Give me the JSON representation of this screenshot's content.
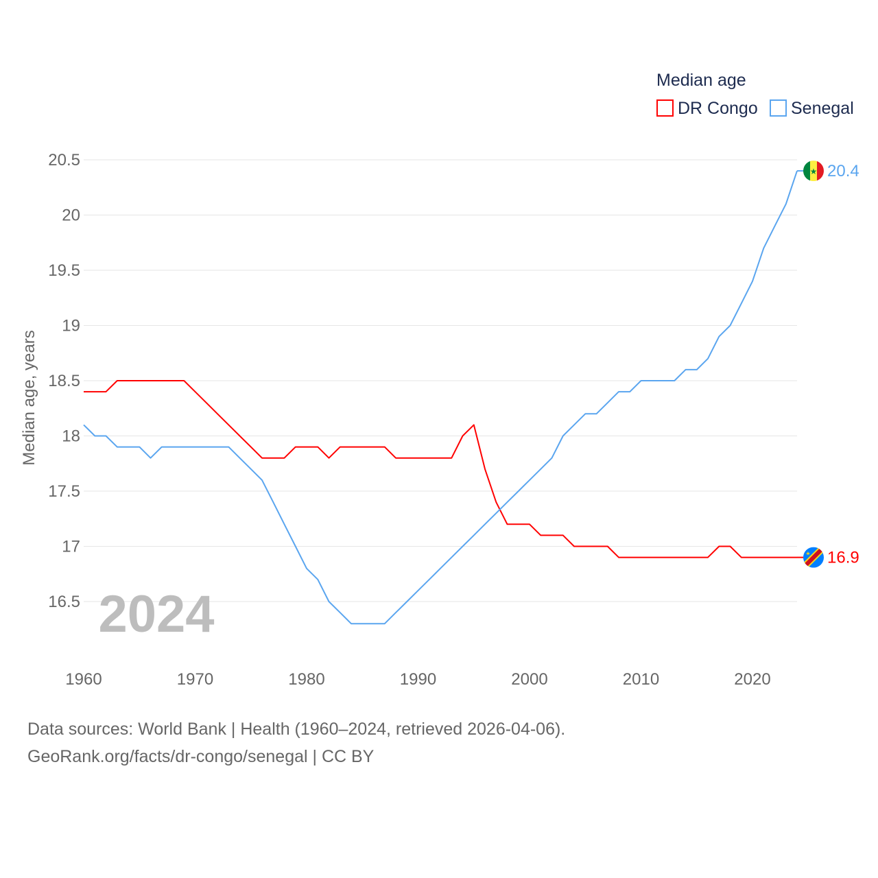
{
  "chart_data": {
    "type": "line",
    "title": "",
    "legend_title": "Median age",
    "legend_placement": "top-right",
    "ylabel": "Median age, years",
    "xlabel": "",
    "ylim": [
      16.0,
      20.5
    ],
    "xlim": [
      1960,
      2024
    ],
    "y_ticks": [
      16.5,
      17,
      17.5,
      18,
      18.5,
      19,
      19.5,
      20,
      20.5
    ],
    "y_tick_labels": [
      "16.5",
      "17",
      "17.5",
      "18",
      "18.5",
      "19",
      "19.5",
      "20",
      "20.5"
    ],
    "x_ticks": [
      1960,
      1970,
      1980,
      1990,
      2000,
      2010,
      2020
    ],
    "x_tick_labels": [
      "1960",
      "1970",
      "1980",
      "1990",
      "2000",
      "2010",
      "2020"
    ],
    "grid": true,
    "year_watermark": "2024",
    "x": [
      1960,
      1961,
      1962,
      1963,
      1964,
      1965,
      1966,
      1967,
      1968,
      1969,
      1970,
      1971,
      1972,
      1973,
      1974,
      1975,
      1976,
      1977,
      1978,
      1979,
      1980,
      1981,
      1982,
      1983,
      1984,
      1985,
      1986,
      1987,
      1988,
      1989,
      1990,
      1991,
      1992,
      1993,
      1994,
      1995,
      1996,
      1997,
      1998,
      1999,
      2000,
      2001,
      2002,
      2003,
      2004,
      2005,
      2006,
      2007,
      2008,
      2009,
      2010,
      2011,
      2012,
      2013,
      2014,
      2015,
      2016,
      2017,
      2018,
      2019,
      2020,
      2021,
      2022,
      2023,
      2024
    ],
    "series": [
      {
        "name": "DR Congo",
        "color": "#ff0000",
        "end_label": "16.9",
        "flag": "dr-congo-flag",
        "values": [
          18.4,
          18.4,
          18.4,
          18.5,
          18.5,
          18.5,
          18.5,
          18.5,
          18.5,
          18.5,
          18.4,
          18.3,
          18.2,
          18.1,
          18.0,
          17.9,
          17.8,
          17.8,
          17.8,
          17.9,
          17.9,
          17.9,
          17.8,
          17.9,
          17.9,
          17.9,
          17.9,
          17.9,
          17.8,
          17.8,
          17.8,
          17.8,
          17.8,
          17.8,
          18.0,
          18.1,
          17.7,
          17.4,
          17.2,
          17.2,
          17.2,
          17.1,
          17.1,
          17.1,
          17.0,
          17.0,
          17.0,
          17.0,
          16.9,
          16.9,
          16.9,
          16.9,
          16.9,
          16.9,
          16.9,
          16.9,
          16.9,
          17.0,
          17.0,
          16.9,
          16.9,
          16.9,
          16.9,
          16.9,
          16.9
        ]
      },
      {
        "name": "Senegal",
        "color": "#5aa5ef",
        "end_label": "20.4",
        "flag": "senegal-flag",
        "values": [
          18.1,
          18.0,
          18.0,
          17.9,
          17.9,
          17.9,
          17.8,
          17.9,
          17.9,
          17.9,
          17.9,
          17.9,
          17.9,
          17.9,
          17.8,
          17.7,
          17.6,
          17.4,
          17.2,
          17.0,
          16.8,
          16.7,
          16.5,
          16.4,
          16.3,
          16.3,
          16.3,
          16.3,
          16.4,
          16.5,
          16.6,
          16.7,
          16.8,
          16.9,
          17.0,
          17.1,
          17.2,
          17.3,
          17.4,
          17.5,
          17.6,
          17.7,
          17.8,
          18.0,
          18.1,
          18.2,
          18.2,
          18.3,
          18.4,
          18.4,
          18.5,
          18.5,
          18.5,
          18.5,
          18.6,
          18.6,
          18.7,
          18.9,
          19.0,
          19.2,
          19.4,
          19.7,
          19.9,
          20.1,
          20.4
        ]
      }
    ]
  },
  "footer": {
    "line1": "Data sources: World Bank | Health (1960–2024, retrieved 2026-04-06).",
    "line2": "GeoRank.org/facts/dr-congo/senegal | CC BY"
  }
}
